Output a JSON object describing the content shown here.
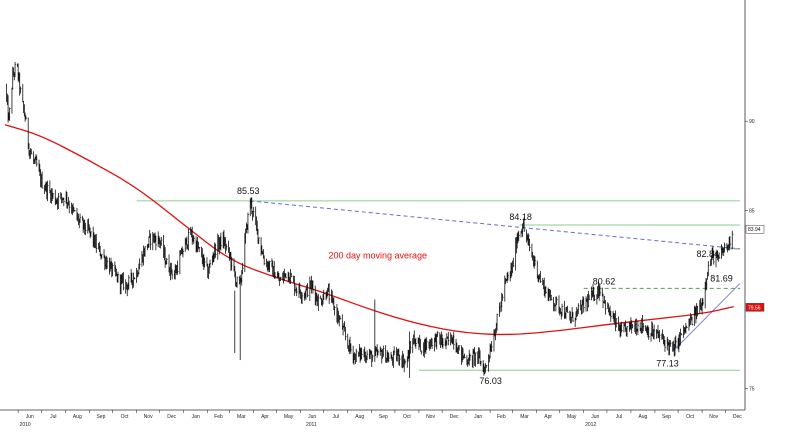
{
  "chart_data": {
    "type": "line",
    "title": "",
    "xlabel": "",
    "ylabel": "",
    "x_range": [
      "2010-05-15",
      "2012-12-20"
    ],
    "ylim": [
      73.8,
      96.8
    ],
    "y_ticks": [
      "90",
      "85",
      "75"
    ],
    "x_ticks": [
      {
        "date": "2010-06-01",
        "label": "Jun"
      },
      {
        "date": "2010-07-01",
        "label": "Jul"
      },
      {
        "date": "2010-08-01",
        "label": "Aug"
      },
      {
        "date": "2010-09-01",
        "label": "Sep"
      },
      {
        "date": "2010-10-01",
        "label": "Oct"
      },
      {
        "date": "2010-11-01",
        "label": "Nov"
      },
      {
        "date": "2010-12-01",
        "label": "Dec"
      },
      {
        "date": "2011-01-01",
        "label": "Jan"
      },
      {
        "date": "2011-02-01",
        "label": "Feb"
      },
      {
        "date": "2011-03-01",
        "label": "Mar"
      },
      {
        "date": "2011-04-01",
        "label": "Apr"
      },
      {
        "date": "2011-05-01",
        "label": "May"
      },
      {
        "date": "2011-06-01",
        "label": "Jun"
      },
      {
        "date": "2011-07-01",
        "label": "Jul"
      },
      {
        "date": "2011-08-01",
        "label": "Aug"
      },
      {
        "date": "2011-09-01",
        "label": "Sep"
      },
      {
        "date": "2011-10-01",
        "label": "Oct"
      },
      {
        "date": "2011-11-01",
        "label": "Nov"
      },
      {
        "date": "2011-12-01",
        "label": "Dec"
      },
      {
        "date": "2012-01-01",
        "label": "Jan"
      },
      {
        "date": "2012-02-01",
        "label": "Feb"
      },
      {
        "date": "2012-03-01",
        "label": "Mar"
      },
      {
        "date": "2012-04-01",
        "label": "Apr"
      },
      {
        "date": "2012-05-01",
        "label": "May"
      },
      {
        "date": "2012-06-01",
        "label": "Jun"
      },
      {
        "date": "2012-07-01",
        "label": "Jul"
      },
      {
        "date": "2012-08-01",
        "label": "Aug"
      },
      {
        "date": "2012-09-01",
        "label": "Sep"
      },
      {
        "date": "2012-10-01",
        "label": "Oct"
      },
      {
        "date": "2012-11-01",
        "label": "Nov"
      },
      {
        "date": "2012-12-01",
        "label": "Dec"
      }
    ],
    "year_labels": [
      {
        "date": "2010-06-10",
        "label": "2010"
      },
      {
        "date": "2011-06-15",
        "label": "2011"
      },
      {
        "date": "2012-06-10",
        "label": "2012"
      }
    ],
    "series": [
      {
        "name": "",
        "style": "bars",
        "color": "#111111",
        "points": [
          [
            "2010-05-15",
            92.0
          ],
          [
            "2010-05-20",
            90.0
          ],
          [
            "2010-05-25",
            92.5
          ],
          [
            "2010-05-30",
            93.2
          ],
          [
            "2010-06-05",
            91.3
          ],
          [
            "2010-06-10",
            90.2
          ],
          [
            "2010-06-15",
            88.5
          ],
          [
            "2010-06-20",
            87.8
          ],
          [
            "2010-06-25",
            87.5
          ],
          [
            "2010-07-01",
            86.6
          ],
          [
            "2010-07-10",
            86.1
          ],
          [
            "2010-07-20",
            85.6
          ],
          [
            "2010-08-01",
            85.8
          ],
          [
            "2010-08-10",
            85.0
          ],
          [
            "2010-08-20",
            84.3
          ],
          [
            "2010-09-01",
            83.8
          ],
          [
            "2010-09-10",
            83.0
          ],
          [
            "2010-09-20",
            82.3
          ],
          [
            "2010-10-01",
            81.6
          ],
          [
            "2010-10-10",
            81.0
          ],
          [
            "2010-10-20",
            80.8
          ],
          [
            "2010-11-01",
            81.5
          ],
          [
            "2010-11-10",
            82.6
          ],
          [
            "2010-11-20",
            83.5
          ],
          [
            "2010-12-01",
            83.3
          ],
          [
            "2010-12-10",
            82.0
          ],
          [
            "2010-12-20",
            81.4
          ],
          [
            "2011-01-01",
            82.9
          ],
          [
            "2011-01-10",
            83.7
          ],
          [
            "2011-01-20",
            82.8
          ],
          [
            "2011-02-01",
            81.5
          ],
          [
            "2011-02-10",
            82.8
          ],
          [
            "2011-02-20",
            83.4
          ],
          [
            "2011-03-01",
            82.5
          ],
          [
            "2011-03-10",
            81.0
          ],
          [
            "2011-03-15",
            80.8
          ],
          [
            "2011-03-22",
            83.6
          ],
          [
            "2011-03-28",
            85.53
          ],
          [
            "2011-04-05",
            84.0
          ],
          [
            "2011-04-15",
            82.2
          ],
          [
            "2011-04-25",
            81.7
          ],
          [
            "2011-05-05",
            81.0
          ],
          [
            "2011-05-15",
            81.6
          ],
          [
            "2011-05-25",
            80.7
          ],
          [
            "2011-06-05",
            80.3
          ],
          [
            "2011-06-15",
            80.8
          ],
          [
            "2011-06-25",
            79.8
          ],
          [
            "2011-07-05",
            80.5
          ],
          [
            "2011-07-15",
            79.5
          ],
          [
            "2011-07-25",
            78.4
          ],
          [
            "2011-08-01",
            77.5
          ],
          [
            "2011-08-10",
            76.8
          ],
          [
            "2011-08-20",
            77.0
          ],
          [
            "2011-09-01",
            76.8
          ],
          [
            "2011-09-15",
            77.0
          ],
          [
            "2011-09-25",
            76.6
          ],
          [
            "2011-10-05",
            76.9
          ],
          [
            "2011-10-15",
            76.4
          ],
          [
            "2011-10-25",
            77.8
          ],
          [
            "2011-11-05",
            77.3
          ],
          [
            "2011-11-15",
            77.6
          ],
          [
            "2011-11-25",
            77.8
          ],
          [
            "2011-12-05",
            77.5
          ],
          [
            "2011-12-15",
            77.9
          ],
          [
            "2011-12-25",
            76.9
          ],
          [
            "2012-01-05",
            76.6
          ],
          [
            "2012-01-15",
            76.9
          ],
          [
            "2012-01-25",
            76.03
          ],
          [
            "2012-02-01",
            77.2
          ],
          [
            "2012-02-10",
            78.8
          ],
          [
            "2012-02-20",
            80.8
          ],
          [
            "2012-03-01",
            81.8
          ],
          [
            "2012-03-07",
            83.5
          ],
          [
            "2012-03-14",
            84.18
          ],
          [
            "2012-03-25",
            82.6
          ],
          [
            "2012-04-05",
            81.2
          ],
          [
            "2012-04-15",
            80.3
          ],
          [
            "2012-04-25",
            79.8
          ],
          [
            "2012-05-05",
            79.4
          ],
          [
            "2012-05-15",
            78.9
          ],
          [
            "2012-05-25",
            79.3
          ],
          [
            "2012-06-05",
            79.9
          ],
          [
            "2012-06-15",
            80.3
          ],
          [
            "2012-06-22",
            80.62
          ],
          [
            "2012-07-01",
            79.5
          ],
          [
            "2012-07-10",
            78.8
          ],
          [
            "2012-07-20",
            78.1
          ],
          [
            "2012-08-01",
            78.5
          ],
          [
            "2012-08-15",
            78.6
          ],
          [
            "2012-08-25",
            78.2
          ],
          [
            "2012-09-05",
            78.0
          ],
          [
            "2012-09-15",
            77.6
          ],
          [
            "2012-09-25",
            77.13
          ],
          [
            "2012-10-05",
            78.0
          ],
          [
            "2012-10-15",
            78.6
          ],
          [
            "2012-10-25",
            79.3
          ],
          [
            "2012-11-01",
            79.8
          ],
          [
            "2012-11-08",
            81.69
          ],
          [
            "2012-11-15",
            82.5
          ],
          [
            "2012-11-22",
            82.2
          ],
          [
            "2012-11-29",
            82.84
          ],
          [
            "2012-12-05",
            83.0
          ],
          [
            "2012-12-10",
            83.94
          ]
        ]
      },
      {
        "name": "200 day moving average",
        "style": "line",
        "color": "#e01010",
        "points": [
          [
            "2010-05-15",
            89.8
          ],
          [
            "2010-07-01",
            89.2
          ],
          [
            "2010-09-01",
            87.8
          ],
          [
            "2010-11-01",
            86.3
          ],
          [
            "2011-01-01",
            84.2
          ],
          [
            "2011-03-01",
            82.2
          ],
          [
            "2011-05-01",
            81.2
          ],
          [
            "2011-07-01",
            80.4
          ],
          [
            "2011-09-01",
            79.4
          ],
          [
            "2011-11-01",
            78.6
          ],
          [
            "2012-01-01",
            78.1
          ],
          [
            "2012-03-01",
            78.0
          ],
          [
            "2012-05-01",
            78.25
          ],
          [
            "2012-07-01",
            78.6
          ],
          [
            "2012-09-01",
            78.9
          ],
          [
            "2012-11-01",
            79.2
          ],
          [
            "2012-12-12",
            79.6
          ]
        ]
      }
    ],
    "reference_lines": [
      {
        "kind": "horizontal",
        "y": 85.53,
        "from": "2010-11-01",
        "to": "2012-12-20",
        "color": "#8fcc8f",
        "dash": "solid"
      },
      {
        "kind": "horizontal",
        "y": 84.18,
        "from": "2012-03-10",
        "to": "2012-12-20",
        "color": "#8fcc8f",
        "dash": "solid"
      },
      {
        "kind": "horizontal",
        "y": 80.62,
        "from": "2012-06-01",
        "to": "2012-12-20",
        "color": "#4fa04f",
        "dash": "dashed"
      },
      {
        "kind": "horizontal",
        "y": 76.03,
        "from": "2011-11-01",
        "to": "2012-12-20",
        "color": "#8fcc8f",
        "dash": "solid"
      },
      {
        "kind": "horizontal",
        "y": 82.84,
        "from": "2012-11-25",
        "to": "2012-12-20",
        "color": "#4fa04f",
        "dash": "dashed"
      },
      {
        "kind": "segment",
        "from": [
          "2011-03-28",
          85.53
        ],
        "to": [
          "2012-12-20",
          82.84
        ],
        "color": "#6a6ad0",
        "dash": "dashed"
      },
      {
        "kind": "segment",
        "from": [
          "2012-09-25",
          77.13
        ],
        "to": [
          "2012-12-20",
          80.9
        ],
        "color": "#7a86c8",
        "dash": "solid"
      }
    ],
    "annotations": [
      {
        "text": "85.53",
        "x": "2011-03-28",
        "y": 85.53
      },
      {
        "text": "84.18",
        "x": "2012-03-14",
        "y": 84.18
      },
      {
        "text": "80.62",
        "x": "2012-06-22",
        "y": 80.62
      },
      {
        "text": "82.84",
        "x": "2012-11-29",
        "y": 82.84
      },
      {
        "text": "81.69",
        "x": "2012-11-08",
        "y": 81.69
      },
      {
        "text": "77.13",
        "x": "2012-09-25",
        "y": 77.13
      },
      {
        "text": "76.03",
        "x": "2012-01-25",
        "y": 76.03
      },
      {
        "text": "200 day moving average",
        "x": "2011-07-20",
        "y": 82.3,
        "color": "#e01010"
      }
    ],
    "value_tags": [
      {
        "text": "83.94",
        "y": 83.94,
        "bg": "#ffffff",
        "fg": "#111111"
      },
      {
        "text": "79.56",
        "y": 79.56,
        "bg": "#e01010",
        "fg": "#ffffff"
      }
    ]
  }
}
